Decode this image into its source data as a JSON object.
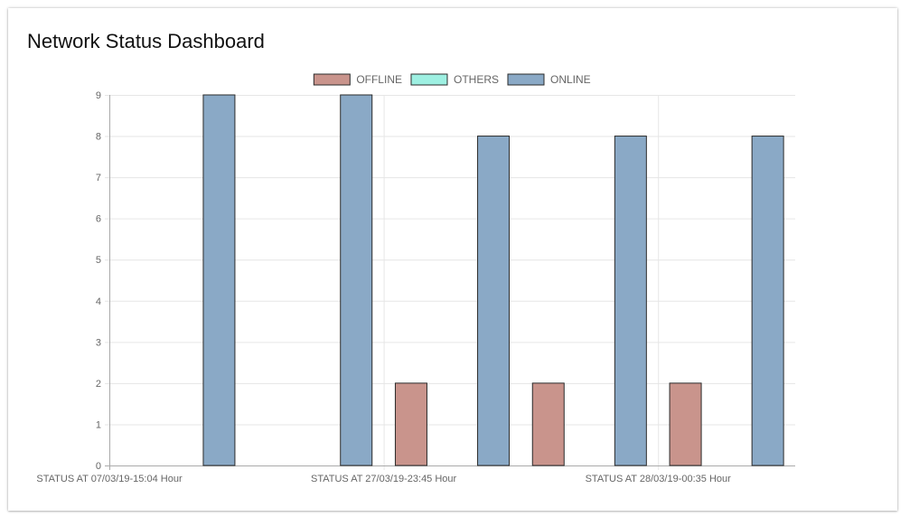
{
  "page": {
    "title": "Network Status Dashboard"
  },
  "chart_data": {
    "type": "bar",
    "title": "",
    "xlabel": "",
    "ylabel": "",
    "ylim": [
      0,
      9
    ],
    "yticks": [
      0,
      1,
      2,
      3,
      4,
      5,
      6,
      7,
      8,
      9
    ],
    "grid": true,
    "legend_position": "top-center",
    "categories": [
      "STATUS AT 07/03/19-15:04 Hour",
      "",
      "STATUS AT 27/03/19-23:45 Hour",
      "",
      "STATUS AT 28/03/19-00:35 Hour"
    ],
    "series": [
      {
        "name": "OFFLINE",
        "color": "#c9948c",
        "values": [
          0,
          0,
          2,
          2,
          2
        ]
      },
      {
        "name": "OTHERS",
        "color": "#9ef0e2",
        "values": [
          0,
          0,
          0,
          0,
          0
        ]
      },
      {
        "name": "ONLINE",
        "color": "#8aa9c6",
        "values": [
          9,
          9,
          8,
          8,
          8
        ]
      }
    ]
  }
}
